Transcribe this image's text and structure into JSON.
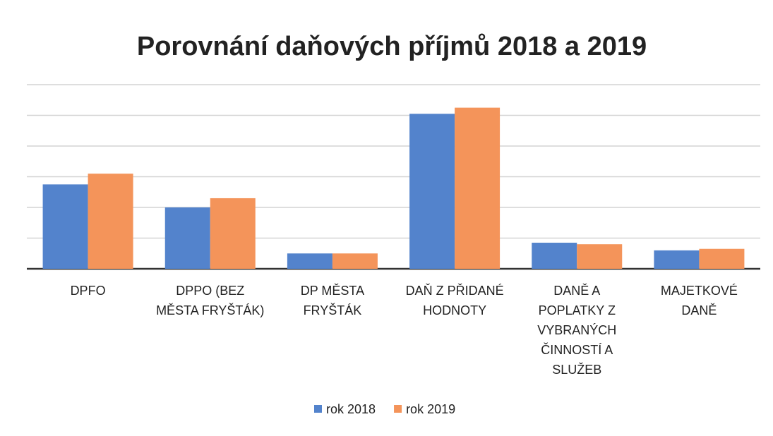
{
  "chart_data": {
    "type": "bar",
    "title": "Porovnání daňových příjmů 2018 a 2019",
    "categories": [
      "DPFO",
      "DPPO (BEZ MĚSTA FRYŠTÁK)",
      "DP MĚSTA FRYŠTÁK",
      "DAŇ Z PŘIDANÉ HODNOTY",
      "DANĚ A POPLATKY Z VYBRANÝCH ČINNOSTÍ A SLUŽEB",
      "MAJETKOVÉ DANĚ"
    ],
    "series": [
      {
        "name": "rok 2018",
        "color": "#5383cc",
        "values": [
          2.75,
          2.0,
          0.5,
          5.05,
          0.85,
          0.6
        ]
      },
      {
        "name": "rok 2019",
        "color": "#f4945a",
        "values": [
          3.1,
          2.3,
          0.5,
          5.25,
          0.8,
          0.65
        ]
      }
    ],
    "ylim": [
      0,
      6
    ],
    "yticks": [
      0,
      1,
      2,
      3,
      4,
      5,
      6
    ],
    "grid": true
  }
}
